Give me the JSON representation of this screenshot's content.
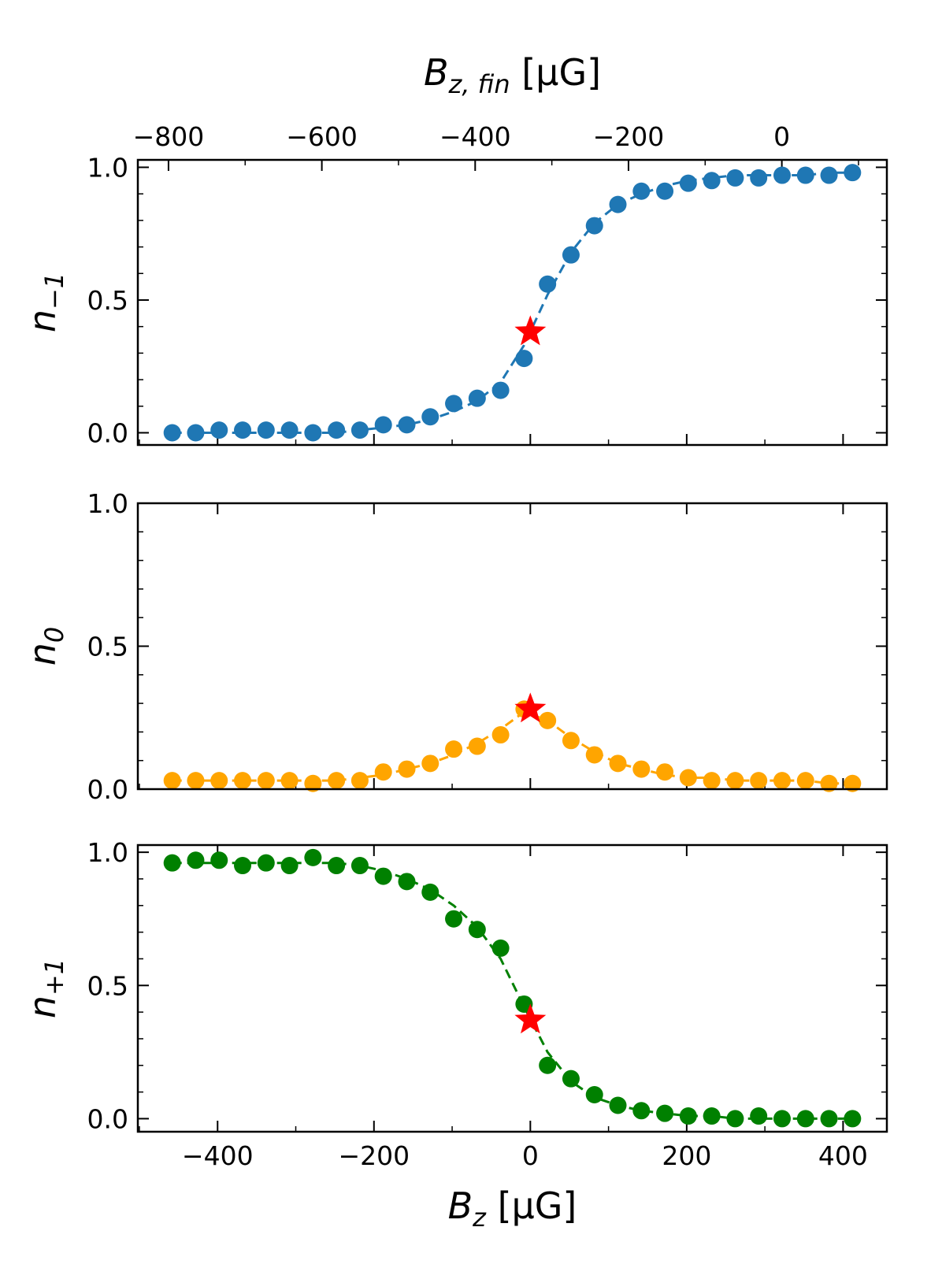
{
  "chart_data": [
    {
      "type": "scatter",
      "ylabel": [
        "n",
        "−1"
      ],
      "x2label": [
        "B",
        "z, fin",
        " [μG]"
      ],
      "x2lim": [
        -840,
        137
      ],
      "x2ticks": [
        {
          "value": -800,
          "label": "−800"
        },
        {
          "value": -600,
          "label": "−600"
        },
        {
          "value": -400,
          "label": "−400"
        },
        {
          "value": -200,
          "label": "−200"
        },
        0
      ],
      "x2minor": [
        -700,
        -500,
        -300,
        -100,
        100
      ],
      "xlim": [
        -502,
        456
      ],
      "ylim": [
        -0.046,
        1.028
      ],
      "xticks": [
        -400,
        -200,
        0,
        200,
        400
      ],
      "xminor": [
        -500,
        -300,
        -100,
        100,
        300
      ],
      "yticks": [
        {
          "value": 0,
          "label": "0.0"
        },
        {
          "value": 0.5,
          "label": "0.5"
        },
        {
          "value": 1,
          "label": "1.0"
        }
      ],
      "yminor": [
        0.1,
        0.2,
        0.3,
        0.4,
        0.6,
        0.7,
        0.8,
        0.9
      ],
      "color": "#1f77b4",
      "x": [
        -458,
        -428,
        -398,
        -368,
        -338,
        -308,
        -278,
        -248,
        -218,
        -188,
        -158,
        -128,
        -98,
        -68,
        -38,
        -8,
        22,
        52,
        82,
        112,
        142,
        172,
        202,
        232,
        262,
        292,
        322,
        352,
        382,
        412
      ],
      "values": [
        0.0,
        0.0,
        0.01,
        0.01,
        0.01,
        0.01,
        0.0,
        0.01,
        0.01,
        0.03,
        0.03,
        0.06,
        0.11,
        0.13,
        0.16,
        0.28,
        0.56,
        0.67,
        0.78,
        0.86,
        0.91,
        0.91,
        0.94,
        0.95,
        0.96,
        0.96,
        0.97,
        0.97,
        0.97,
        0.98
      ],
      "fit": {
        "linestyle": "dashed",
        "values": [
          0.0,
          0.0,
          0.0,
          0.0,
          0.0,
          0.0,
          0.0,
          0.0,
          0.01,
          0.02,
          0.03,
          0.05,
          0.08,
          0.12,
          0.19,
          0.33,
          0.52,
          0.68,
          0.79,
          0.86,
          0.9,
          0.93,
          0.95,
          0.96,
          0.97,
          0.97,
          0.97,
          0.97,
          0.98,
          0.98
        ]
      },
      "star": {
        "x": 0,
        "y": 0.38,
        "color": "#ff0000"
      }
    },
    {
      "type": "scatter",
      "ylabel": [
        "n",
        "0"
      ],
      "xlim": [
        -502,
        456
      ],
      "ylim": [
        0,
        1
      ],
      "xticks": [
        -400,
        -200,
        0,
        200,
        400
      ],
      "xminor": [
        -500,
        -300,
        -100,
        100,
        300
      ],
      "yticks": [
        {
          "value": 0,
          "label": "0.0"
        },
        {
          "value": 0.5,
          "label": "0.5"
        },
        {
          "value": 1,
          "label": "1.0"
        }
      ],
      "yminor": [
        0.1,
        0.2,
        0.3,
        0.4,
        0.6,
        0.7,
        0.8,
        0.9
      ],
      "color": "#ffa500",
      "x": [
        -458,
        -428,
        -398,
        -368,
        -338,
        -308,
        -278,
        -248,
        -218,
        -188,
        -158,
        -128,
        -98,
        -68,
        -38,
        -8,
        22,
        52,
        82,
        112,
        142,
        172,
        202,
        232,
        262,
        292,
        322,
        352,
        382,
        412
      ],
      "values": [
        0.03,
        0.03,
        0.03,
        0.03,
        0.03,
        0.03,
        0.02,
        0.03,
        0.03,
        0.06,
        0.07,
        0.09,
        0.14,
        0.15,
        0.19,
        0.28,
        0.24,
        0.17,
        0.12,
        0.09,
        0.07,
        0.06,
        0.04,
        0.03,
        0.03,
        0.03,
        0.03,
        0.03,
        0.02,
        0.02
      ],
      "fit": {
        "linestyle": "dashed",
        "values": [
          0.03,
          0.03,
          0.03,
          0.03,
          0.03,
          0.03,
          0.03,
          0.03,
          0.04,
          0.05,
          0.07,
          0.09,
          0.12,
          0.16,
          0.21,
          0.27,
          0.24,
          0.18,
          0.13,
          0.09,
          0.07,
          0.05,
          0.04,
          0.04,
          0.03,
          0.03,
          0.03,
          0.03,
          0.02,
          0.02
        ]
      },
      "star": {
        "x": 0,
        "y": 0.28,
        "color": "#ff0000"
      }
    },
    {
      "type": "scatter",
      "ylabel": [
        "n",
        "+1"
      ],
      "xlabel": [
        "B",
        "z",
        " [μG]"
      ],
      "xlim": [
        -502,
        456
      ],
      "ylim": [
        -0.049,
        1.027
      ],
      "xticks": [
        {
          "value": -400,
          "label": "−400"
        },
        {
          "value": -200,
          "label": "−200"
        },
        0,
        200,
        400
      ],
      "xminor": [
        -500,
        -300,
        -100,
        100,
        300
      ],
      "yticks": [
        {
          "value": 0,
          "label": "0.0"
        },
        {
          "value": 0.5,
          "label": "0.5"
        },
        {
          "value": 1,
          "label": "1.0"
        }
      ],
      "yminor": [
        0.1,
        0.2,
        0.3,
        0.4,
        0.6,
        0.7,
        0.8,
        0.9
      ],
      "color": "#008000",
      "x": [
        -458,
        -428,
        -398,
        -368,
        -338,
        -308,
        -278,
        -248,
        -218,
        -188,
        -158,
        -128,
        -98,
        -68,
        -38,
        -8,
        22,
        52,
        82,
        112,
        142,
        172,
        202,
        232,
        262,
        292,
        322,
        352,
        382,
        412
      ],
      "values": [
        0.96,
        0.97,
        0.97,
        0.95,
        0.96,
        0.95,
        0.98,
        0.95,
        0.95,
        0.91,
        0.89,
        0.85,
        0.75,
        0.71,
        0.64,
        0.43,
        0.2,
        0.15,
        0.09,
        0.05,
        0.03,
        0.02,
        0.01,
        0.01,
        0.0,
        0.01,
        0.0,
        0.0,
        0.0,
        0.0
      ],
      "fit": {
        "linestyle": "dashed",
        "values": [
          0.96,
          0.96,
          0.96,
          0.96,
          0.96,
          0.96,
          0.96,
          0.96,
          0.95,
          0.93,
          0.9,
          0.86,
          0.8,
          0.72,
          0.6,
          0.42,
          0.25,
          0.14,
          0.08,
          0.05,
          0.03,
          0.02,
          0.01,
          0.01,
          0.0,
          0.0,
          0.0,
          0.0,
          0.0,
          0.0
        ]
      },
      "star": {
        "x": 0,
        "y": 0.37,
        "color": "#ff0000"
      }
    }
  ]
}
